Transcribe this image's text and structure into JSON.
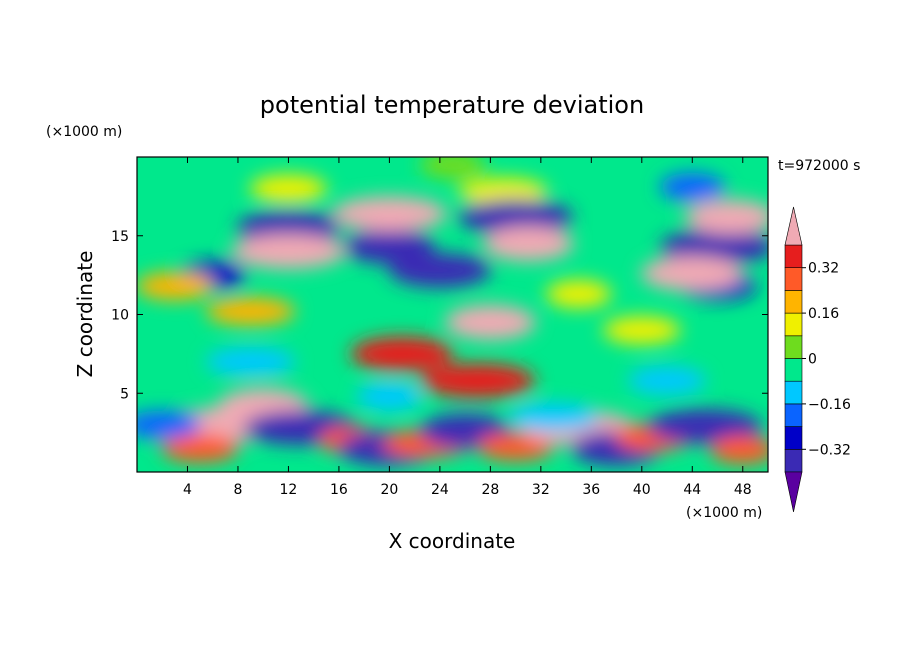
{
  "chart_data": {
    "type": "heatmap",
    "title": "potential temperature deviation",
    "xlabel": "X coordinate",
    "ylabel": "Z coordinate",
    "x_unit": "(×1000 m)",
    "y_unit": "(×1000 m)",
    "time_label": "t=972000 s",
    "xlim": [
      0,
      50
    ],
    "ylim": [
      0,
      20
    ],
    "x_ticks": [
      4,
      8,
      12,
      16,
      20,
      24,
      28,
      32,
      36,
      40,
      44,
      48
    ],
    "y_ticks": [
      5,
      10,
      15
    ],
    "colorbar": {
      "levels": [
        -0.4,
        -0.32,
        -0.24,
        -0.16,
        -0.08,
        0,
        0.08,
        0.16,
        0.24,
        0.32,
        0.4
      ],
      "tick_values": [
        0.32,
        0.16,
        0,
        -0.16,
        -0.32
      ],
      "tick_labels": [
        "0.32",
        "0.16",
        "0",
        "−0.16",
        "−0.32"
      ],
      "colors": [
        "#5a00a0",
        "#3a2ab4",
        "#0000c8",
        "#0a64ff",
        "#00c8ff",
        "#00e88c",
        "#6edc1e",
        "#f0f000",
        "#ffb400",
        "#ff5a28",
        "#e61e1e",
        "#f0aab4"
      ],
      "extend": "both"
    },
    "features": [
      {
        "x": 25,
        "z": 19.5,
        "value": 0.0
      },
      {
        "x": 12,
        "z": 18.0,
        "value": 0.15
      },
      {
        "x": 29,
        "z": 17.8,
        "value": 0.1
      },
      {
        "x": 44,
        "z": 18.1,
        "value": -0.17
      },
      {
        "x": 12,
        "z": 15.5,
        "value": -0.4
      },
      {
        "x": 30,
        "z": 16.2,
        "value": -0.4
      },
      {
        "x": 20,
        "z": 14.3,
        "value": -0.38
      },
      {
        "x": 24,
        "z": 12.8,
        "value": -0.34
      },
      {
        "x": 46,
        "z": 14.3,
        "value": -0.36
      },
      {
        "x": 6,
        "z": 12.5,
        "value": -0.3
      },
      {
        "x": 46,
        "z": 11.8,
        "value": -0.3
      },
      {
        "x": 12,
        "z": 14.0,
        "value": 0.42
      },
      {
        "x": 31,
        "z": 14.5,
        "value": 0.42
      },
      {
        "x": 44,
        "z": 12.6,
        "value": 0.42
      },
      {
        "x": 20,
        "z": 16.4,
        "value": 0.4
      },
      {
        "x": 47,
        "z": 16.2,
        "value": 0.4
      },
      {
        "x": 3,
        "z": 11.8,
        "value": 0.22
      },
      {
        "x": 9,
        "z": 10.2,
        "value": 0.2
      },
      {
        "x": 28,
        "z": 9.5,
        "value": 0.4
      },
      {
        "x": 21,
        "z": 7.5,
        "value": 0.36
      },
      {
        "x": 27,
        "z": 5.8,
        "value": 0.38
      },
      {
        "x": 35,
        "z": 11.3,
        "value": 0.1
      },
      {
        "x": 40,
        "z": 9.0,
        "value": 0.12
      },
      {
        "x": 9,
        "z": 7.0,
        "value": -0.1
      },
      {
        "x": 20,
        "z": 4.8,
        "value": -0.12
      },
      {
        "x": 42,
        "z": 5.8,
        "value": -0.1
      },
      {
        "x": 7,
        "z": 3.0,
        "value": 0.42
      },
      {
        "x": 10,
        "z": 4.2,
        "value": 0.4
      },
      {
        "x": 5,
        "z": 1.5,
        "value": 0.3
      },
      {
        "x": 13,
        "z": 2.8,
        "value": -0.36
      },
      {
        "x": 17,
        "z": 2.0,
        "value": 0.3
      },
      {
        "x": 20,
        "z": 1.5,
        "value": -0.36
      },
      {
        "x": 23,
        "z": 1.8,
        "value": 0.3
      },
      {
        "x": 26,
        "z": 2.6,
        "value": -0.36
      },
      {
        "x": 30,
        "z": 1.6,
        "value": 0.28
      },
      {
        "x": 35,
        "z": 2.8,
        "value": 0.4
      },
      {
        "x": 38,
        "z": 1.5,
        "value": -0.36
      },
      {
        "x": 41,
        "z": 2.2,
        "value": 0.3
      },
      {
        "x": 45,
        "z": 2.9,
        "value": -0.36
      },
      {
        "x": 48,
        "z": 1.4,
        "value": 0.3
      },
      {
        "x": 2,
        "z": 3.0,
        "value": -0.2
      },
      {
        "x": 33,
        "z": 3.5,
        "value": -0.16
      }
    ]
  }
}
